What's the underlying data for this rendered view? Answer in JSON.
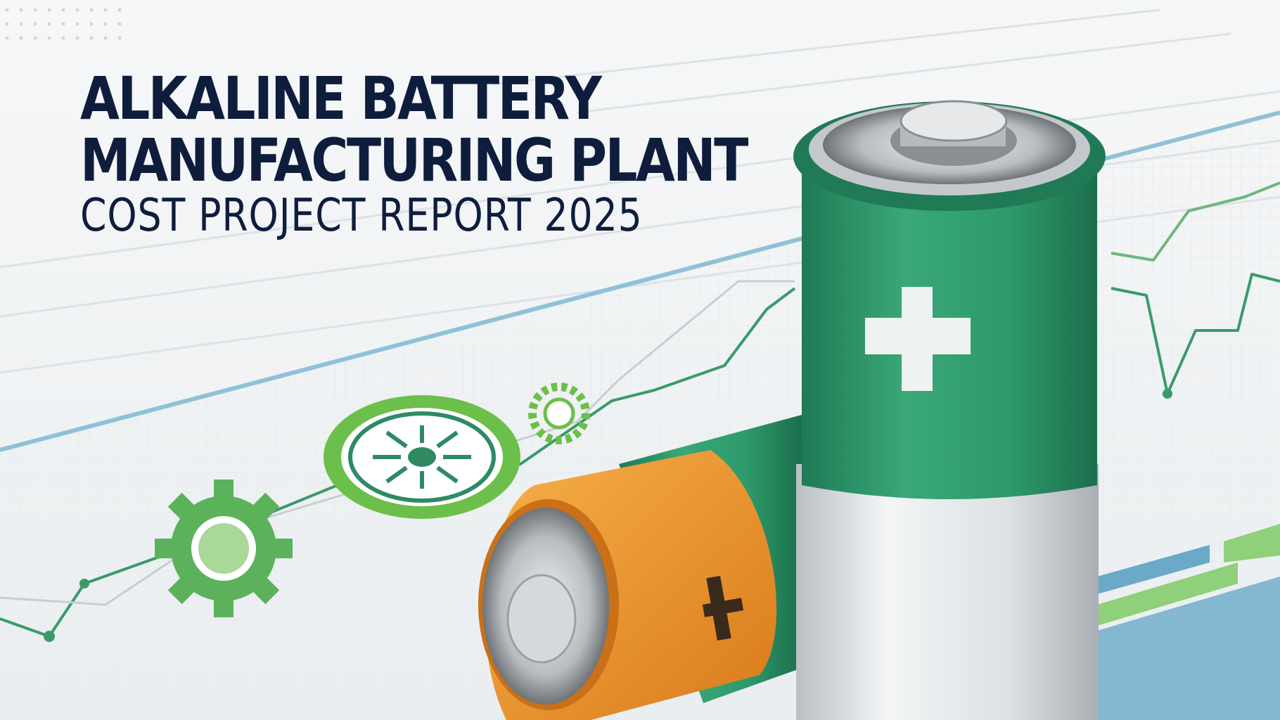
{
  "title": {
    "line1": "ALKALINE BATTERY",
    "line2": "MANUFACTURING PLANT",
    "line3": "COST PROJECT REPORT  2025"
  },
  "colors": {
    "title": "#0f1d3d",
    "battery_green": "#2f9a6c",
    "battery_orange": "#f0962e",
    "accent_green": "#6cbf4a",
    "accent_blue": "#6aa9c8"
  },
  "icons": [
    "gear-icon",
    "sun-icon",
    "plus-icon"
  ]
}
